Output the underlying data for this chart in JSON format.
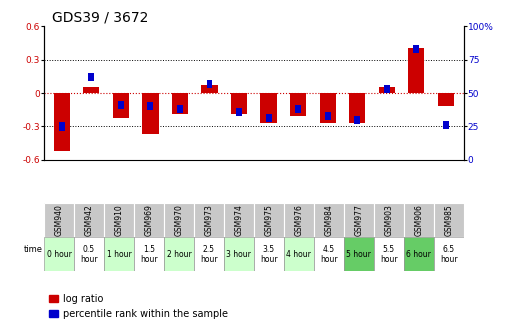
{
  "title": "GDS39 / 3672",
  "samples": [
    "GSM940",
    "GSM942",
    "GSM910",
    "GSM969",
    "GSM970",
    "GSM973",
    "GSM974",
    "GSM975",
    "GSM976",
    "GSM984",
    "GSM977",
    "GSM903",
    "GSM906",
    "GSM985"
  ],
  "times": [
    "0 hour",
    "0.5\nhour",
    "1 hour",
    "1.5\nhour",
    "2 hour",
    "2.5\nhour",
    "3 hour",
    "3.5\nhour",
    "4 hour",
    "4.5\nhour",
    "5 hour",
    "5.5\nhour",
    "6 hour",
    "6.5\nhour"
  ],
  "log_ratio": [
    -0.52,
    0.05,
    -0.22,
    -0.37,
    -0.19,
    0.07,
    -0.19,
    -0.27,
    -0.21,
    -0.27,
    -0.27,
    0.05,
    0.4,
    -0.12
  ],
  "percentile": [
    25,
    62,
    41,
    40,
    38,
    57,
    36,
    31,
    38,
    33,
    30,
    53,
    83,
    26
  ],
  "ylim_left": [
    -0.6,
    0.6
  ],
  "ylim_right": [
    0,
    100
  ],
  "yticks_left": [
    -0.6,
    -0.3,
    0.0,
    0.3,
    0.6
  ],
  "yticks_right": [
    0,
    25,
    50,
    75,
    100
  ],
  "bar_color_red": "#cc0000",
  "bar_color_blue": "#0000cc",
  "bg_color": "#ffffff",
  "plot_bg": "#ffffff",
  "cell_bg_gray": "#c8c8c8",
  "time_bg_colors": [
    "#ccffcc",
    "#ffffff",
    "#ccffcc",
    "#ffffff",
    "#ccffcc",
    "#ffffff",
    "#ccffcc",
    "#ffffff",
    "#ccffcc",
    "#ffffff",
    "#66cc66",
    "#ffffff",
    "#66cc66",
    "#ffffff"
  ],
  "red_bar_width": 0.55,
  "blue_bar_width": 0.2,
  "title_fontsize": 10,
  "tick_fontsize": 6.5,
  "sample_fontsize": 5.5,
  "time_fontsize": 5.5,
  "legend_fontsize": 7
}
